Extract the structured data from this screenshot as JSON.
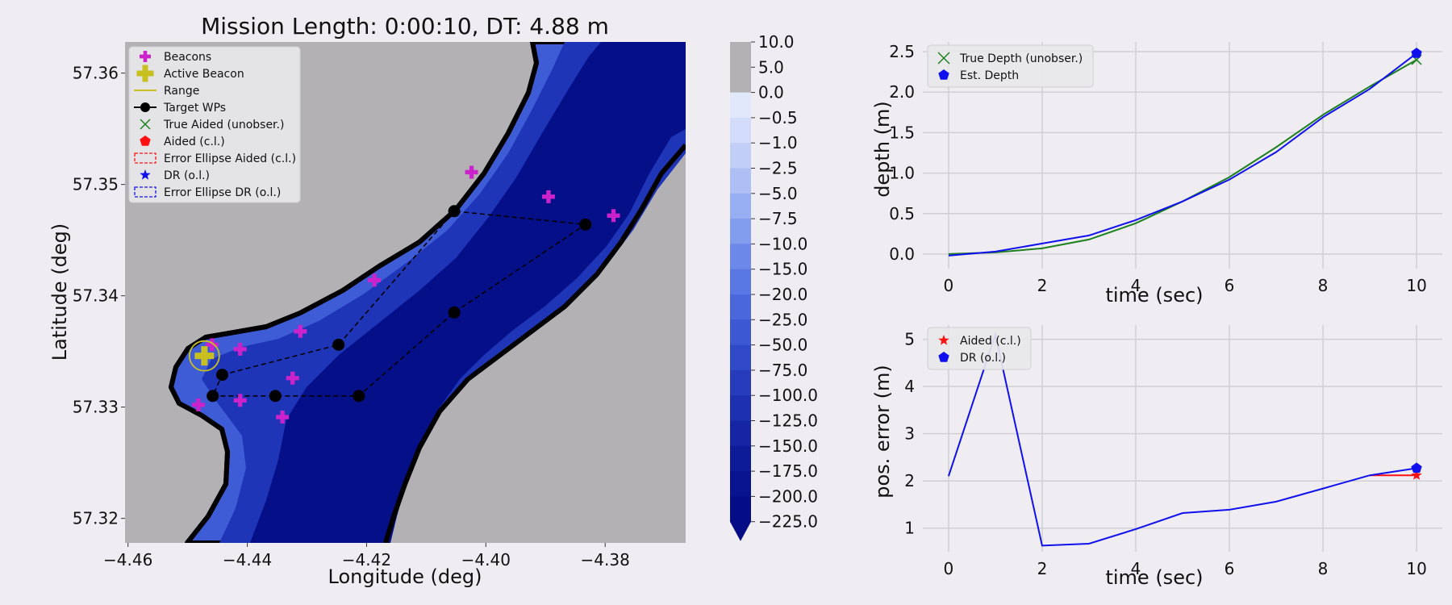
{
  "map": {
    "title": "Mission Length: 0:00:10, DT: 4.88 m",
    "xlabel": "Longitude (deg)",
    "ylabel": "Latitude (deg)",
    "xticks": [
      -4.46,
      -4.44,
      -4.42,
      -4.4,
      -4.38
    ],
    "xtick_labels": [
      "−4.46",
      "−4.44",
      "−4.42",
      "−4.40",
      "−4.38"
    ],
    "yticks": [
      57.36,
      57.35,
      57.34,
      57.33,
      57.32
    ],
    "ytick_labels": [
      "57.36",
      "57.35",
      "57.34",
      "57.33",
      "57.32"
    ],
    "xlim": [
      -4.4605,
      -4.3665
    ],
    "ylim": [
      57.3178,
      57.3628
    ],
    "legend": [
      {
        "label": "Beacons",
        "marker": "plus",
        "color": "#cc22cc"
      },
      {
        "label": "Active Beacon",
        "marker": "plus-big",
        "color": "#c8c020"
      },
      {
        "label": "Range",
        "marker": "line",
        "color": "#c8c020"
      },
      {
        "label": "Target WPs",
        "marker": "line-dot",
        "color": "#000000"
      },
      {
        "label": "True Aided (unobser.)",
        "marker": "x",
        "color": "#1e7f1e"
      },
      {
        "label": "Aided (c.l.)",
        "marker": "pentagon",
        "color": "#ff1010"
      },
      {
        "label": "Error Ellipse Aided (c.l.)",
        "marker": "dashed-box",
        "color": "#ff1010"
      },
      {
        "label": "DR (o.l.)",
        "marker": "star",
        "color": "#1010ee"
      },
      {
        "label": "Error Ellipse DR (o.l.)",
        "marker": "dashed-box",
        "color": "#1010ee"
      }
    ],
    "beacons": [
      {
        "lon": -4.4482,
        "lat": 57.3302
      },
      {
        "lon": -4.4459,
        "lat": 57.3356
      },
      {
        "lon": -4.4412,
        "lat": 57.3352
      },
      {
        "lon": -4.4412,
        "lat": 57.3306
      },
      {
        "lon": -4.4341,
        "lat": 57.3291
      },
      {
        "lon": -4.4324,
        "lat": 57.3326
      },
      {
        "lon": -4.4311,
        "lat": 57.3368
      },
      {
        "lon": -4.4187,
        "lat": 57.3414
      },
      {
        "lon": -4.4024,
        "lat": 57.3511
      },
      {
        "lon": -4.3895,
        "lat": 57.3489
      },
      {
        "lon": -4.3786,
        "lat": 57.3472
      }
    ],
    "active_beacon": {
      "lon": -4.4472,
      "lat": 57.3346
    },
    "range_radius_deg": 0.0025,
    "waypoints_path": [
      {
        "lon": -4.4442,
        "lat": 57.3329
      },
      {
        "lon": -4.4247,
        "lat": 57.3356
      },
      {
        "lon": -4.4053,
        "lat": 57.3476
      },
      {
        "lon": -4.3833,
        "lat": 57.3464
      },
      {
        "lon": -4.4053,
        "lat": 57.3385
      },
      {
        "lon": -4.4213,
        "lat": 57.331
      },
      {
        "lon": -4.4353,
        "lat": 57.331
      },
      {
        "lon": -4.4458,
        "lat": 57.331
      },
      {
        "lon": -4.4442,
        "lat": 57.3329
      }
    ],
    "colorbar": {
      "levels": [
        "10.0",
        "5.0",
        "0.0",
        "−0.5",
        "−1.0",
        "−2.5",
        "−5.0",
        "−7.5",
        "−10.0",
        "−15.0",
        "−20.0",
        "−25.0",
        "−50.0",
        "−75.0",
        "−100.0",
        "−125.0",
        "−150.0",
        "−175.0",
        "−200.0",
        "−225.0"
      ],
      "colors": [
        "#b3b1b4",
        "#b3b1b4",
        "#e2e8fc",
        "#d2dbfa",
        "#c1cff7",
        "#adbff5",
        "#98aef2",
        "#829cee",
        "#6c89ea",
        "#5a78e4",
        "#4a68db",
        "#3c58d2",
        "#3049c7",
        "#263cbc",
        "#1d30b0",
        "#1525a4",
        "#0e1b99",
        "#08138f",
        "#040d86"
      ]
    }
  },
  "depth_chart": {
    "type": "line",
    "xlabel": "time (sec)",
    "ylabel": "depth (m)",
    "xlim": [
      -0.55,
      10.55
    ],
    "ylim": [
      -0.18,
      2.62
    ],
    "xticks": [
      0,
      2,
      4,
      6,
      8,
      10
    ],
    "xtick_labels": [
      "0",
      "2",
      "4",
      "6",
      "8",
      "10"
    ],
    "yticks": [
      0.0,
      0.5,
      1.0,
      1.5,
      2.0,
      2.5
    ],
    "ytick_labels": [
      "0.0",
      "0.5",
      "1.0",
      "1.5",
      "2.0",
      "2.5"
    ],
    "series": [
      {
        "name": "True Depth (unobser.)",
        "color": "#1e7f1e",
        "marker": "x",
        "x": [
          0,
          1,
          2,
          3,
          4,
          5,
          6,
          7,
          8,
          9,
          10
        ],
        "y": [
          0.0,
          0.02,
          0.07,
          0.18,
          0.38,
          0.65,
          0.95,
          1.32,
          1.72,
          2.07,
          2.4
        ]
      },
      {
        "name": "Est. Depth",
        "color": "#1010ee",
        "marker": "pentagon",
        "x": [
          0,
          1,
          2,
          3,
          4,
          5,
          6,
          7,
          8,
          9,
          10
        ],
        "y": [
          -0.02,
          0.03,
          0.13,
          0.23,
          0.42,
          0.65,
          0.92,
          1.26,
          1.69,
          2.04,
          2.48
        ]
      }
    ]
  },
  "error_chart": {
    "type": "line",
    "xlabel": "time (sec)",
    "ylabel": "pos. error (m)",
    "xlim": [
      -0.55,
      10.55
    ],
    "ylim": [
      0.5,
      5.3
    ],
    "xticks": [
      0,
      2,
      4,
      6,
      8,
      10
    ],
    "xtick_labels": [
      "0",
      "2",
      "4",
      "6",
      "8",
      "10"
    ],
    "yticks": [
      1,
      2,
      3,
      4,
      5
    ],
    "ytick_labels": [
      "1",
      "2",
      "3",
      "4",
      "5"
    ],
    "series": [
      {
        "name": "Aided (c.l.)",
        "color": "#ff1010",
        "marker": "star",
        "x": [
          9,
          10
        ],
        "y": [
          2.12,
          2.12
        ]
      },
      {
        "name": "DR (o.l.)",
        "color": "#1010ee",
        "marker": "pentagon",
        "x": [
          0,
          1,
          2,
          3,
          4,
          5,
          6,
          7,
          8,
          9,
          10
        ],
        "y": [
          2.1,
          5.1,
          0.63,
          0.67,
          0.98,
          1.32,
          1.39,
          1.56,
          1.84,
          2.12,
          2.27
        ]
      }
    ]
  }
}
